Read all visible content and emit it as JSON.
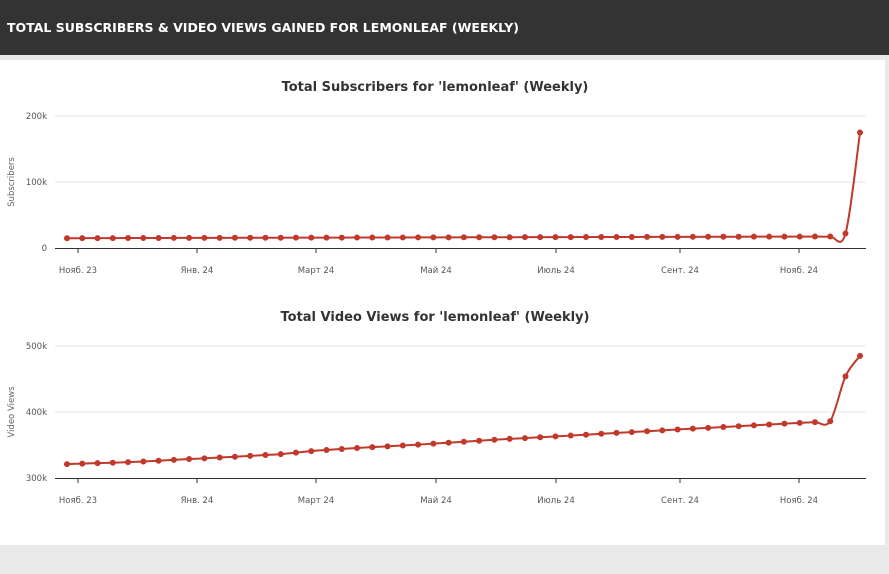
{
  "page": {
    "header_title": "TOTAL SUBSCRIBERS & VIDEO VIEWS GAINED FOR LEMONLEAF (WEEKLY)"
  },
  "colors": {
    "series": "#c0392b",
    "header_bg": "#333333",
    "grid": "#e6e6e6"
  },
  "chart_data": [
    {
      "type": "line",
      "title": "Total Subscribers for 'lemonleaf' (Weekly)",
      "xlabel": "",
      "ylabel": "Subscribers",
      "ylim": [
        0,
        200000
      ],
      "yticks": [
        0,
        100000,
        200000
      ],
      "ytick_labels": [
        "0",
        "100k",
        "200k"
      ],
      "xtick_labels": [
        "Нояб. 23",
        "Янв. 24",
        "Март 24",
        "Май 24",
        "Июль 24",
        "Сент. 24",
        "Нояб. 24"
      ],
      "grid": true,
      "legend": "none",
      "series": [
        {
          "values": [
            14800,
            14900,
            15000,
            15050,
            15100,
            15150,
            15200,
            15250,
            15300,
            15350,
            15400,
            15450,
            15500,
            15550,
            15600,
            15650,
            15700,
            15750,
            15800,
            15850,
            15900,
            15950,
            16000,
            16050,
            16100,
            16150,
            16200,
            16250,
            16300,
            16350,
            16400,
            16450,
            16500,
            16550,
            16600,
            16650,
            16700,
            16750,
            16800,
            16850,
            16900,
            16950,
            17000,
            17050,
            17100,
            17150,
            17200,
            17250,
            17300,
            17350,
            17400,
            22000,
            175000
          ]
        }
      ]
    },
    {
      "type": "line",
      "title": "Total Video Views for 'lemonleaf' (Weekly)",
      "xlabel": "",
      "ylabel": "Video Views",
      "ylim": [
        300000,
        500000
      ],
      "yticks": [
        300000,
        400000,
        500000
      ],
      "ytick_labels": [
        "300k",
        "400k",
        "500k"
      ],
      "xtick_labels": [
        "Нояб. 23",
        "Янв. 24",
        "Март 24",
        "Май 24",
        "Июль 24",
        "Сент. 24",
        "Нояб. 24"
      ],
      "grid": true,
      "legend": "none",
      "series": [
        {
          "values": [
            321000,
            321800,
            322500,
            323200,
            324000,
            325000,
            326200,
            327500,
            328700,
            329800,
            331000,
            332200,
            333500,
            334800,
            336200,
            338500,
            340800,
            342500,
            344000,
            345500,
            346800,
            348000,
            349200,
            350500,
            352000,
            353500,
            355000,
            356500,
            358000,
            359300,
            360500,
            361800,
            363000,
            364300,
            365600,
            367000,
            368300,
            369600,
            370900,
            372200,
            373500,
            374800,
            376000,
            377200,
            378500,
            379800,
            381000,
            382300,
            383500,
            384700,
            386000,
            454000,
            485000
          ]
        }
      ]
    }
  ]
}
